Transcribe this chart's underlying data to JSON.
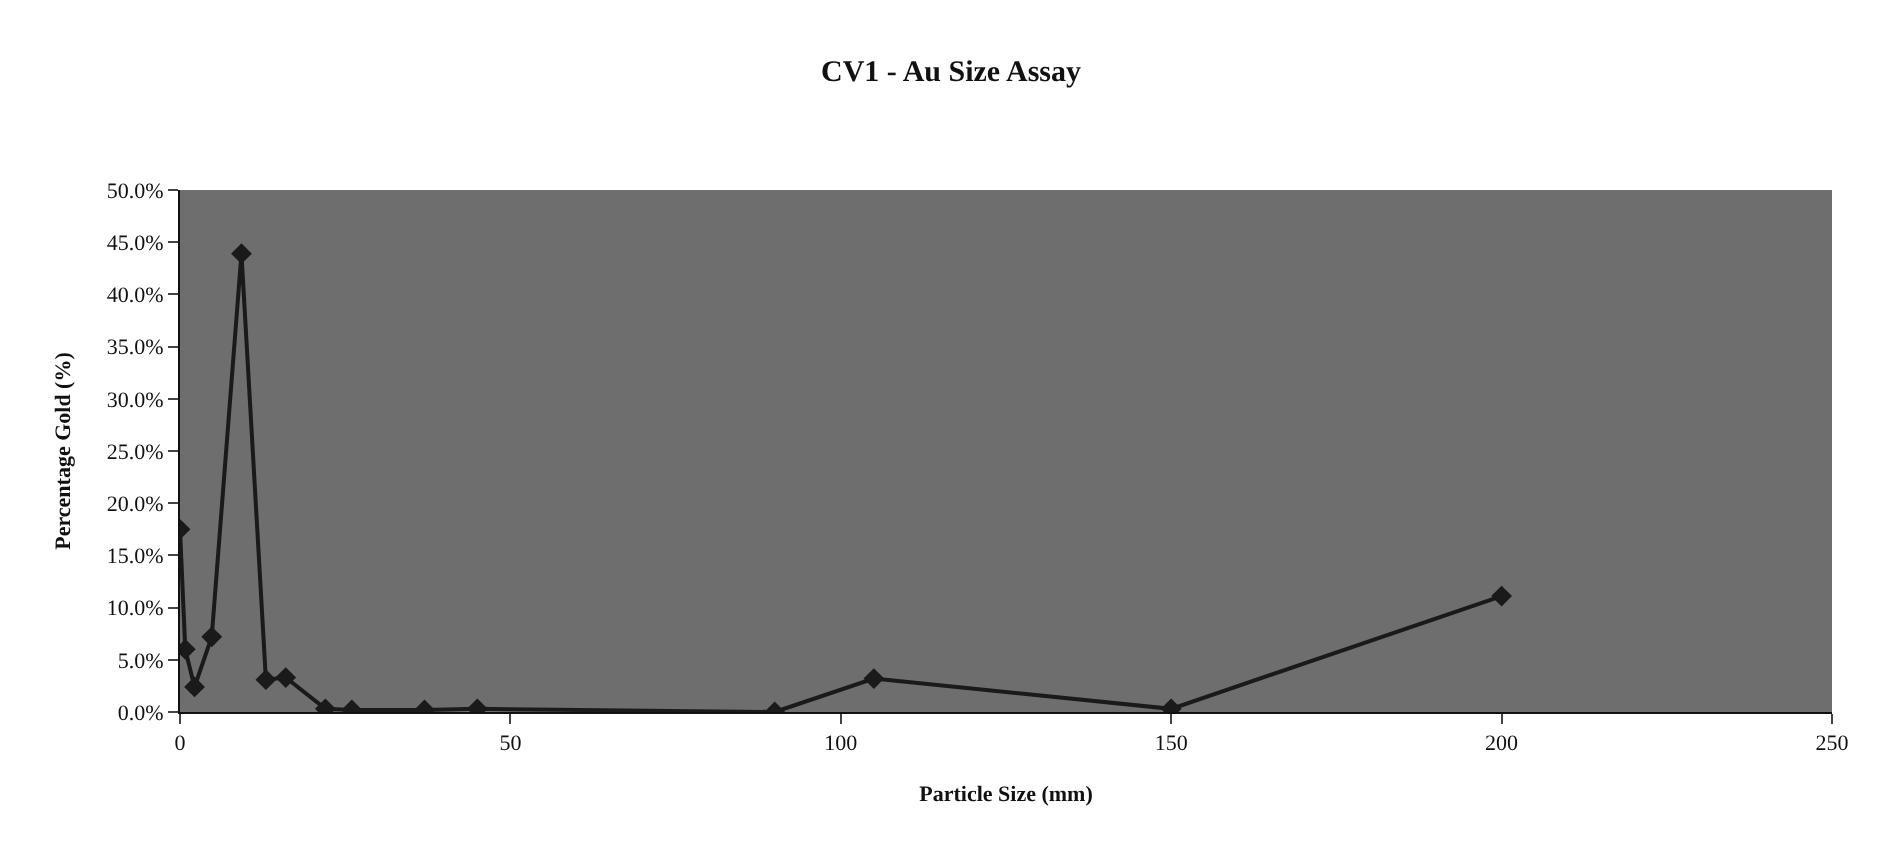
{
  "chart_data": {
    "type": "line",
    "title": "CV1 - Au Size Assay",
    "xlabel": "Particle Size (mm)",
    "ylabel": "Percentage Gold (%)",
    "x": [
      0,
      0.8,
      2.2,
      4.8,
      9.3,
      13,
      16,
      22,
      26,
      37,
      45,
      90,
      105,
      150,
      200
    ],
    "values": [
      17.5,
      6,
      2.4,
      7.2,
      43.9,
      3.1,
      3.3,
      0.3,
      0.2,
      0.2,
      0.3,
      0,
      3.2,
      0.3,
      11.1
    ],
    "color": "#1a1a1a",
    "marker": "diamond",
    "grid": false,
    "xlim": [
      0,
      250
    ],
    "xticks": [
      0,
      50,
      100,
      150,
      200,
      250
    ],
    "ylim": [
      0,
      50
    ],
    "yticks": [
      {
        "value": 0,
        "label": "0.0%"
      },
      {
        "value": 5,
        "label": "5.0%"
      },
      {
        "value": 10,
        "label": "10.0%"
      },
      {
        "value": 15,
        "label": "15.0%"
      },
      {
        "value": 20,
        "label": "20.0%"
      },
      {
        "value": 25,
        "label": "25.0%"
      },
      {
        "value": 30,
        "label": "30.0%"
      },
      {
        "value": 35,
        "label": "35.0%"
      },
      {
        "value": 40,
        "label": "40.0%"
      },
      {
        "value": 45,
        "label": "45.0%"
      },
      {
        "value": 50,
        "label": "50.0%"
      }
    ]
  }
}
